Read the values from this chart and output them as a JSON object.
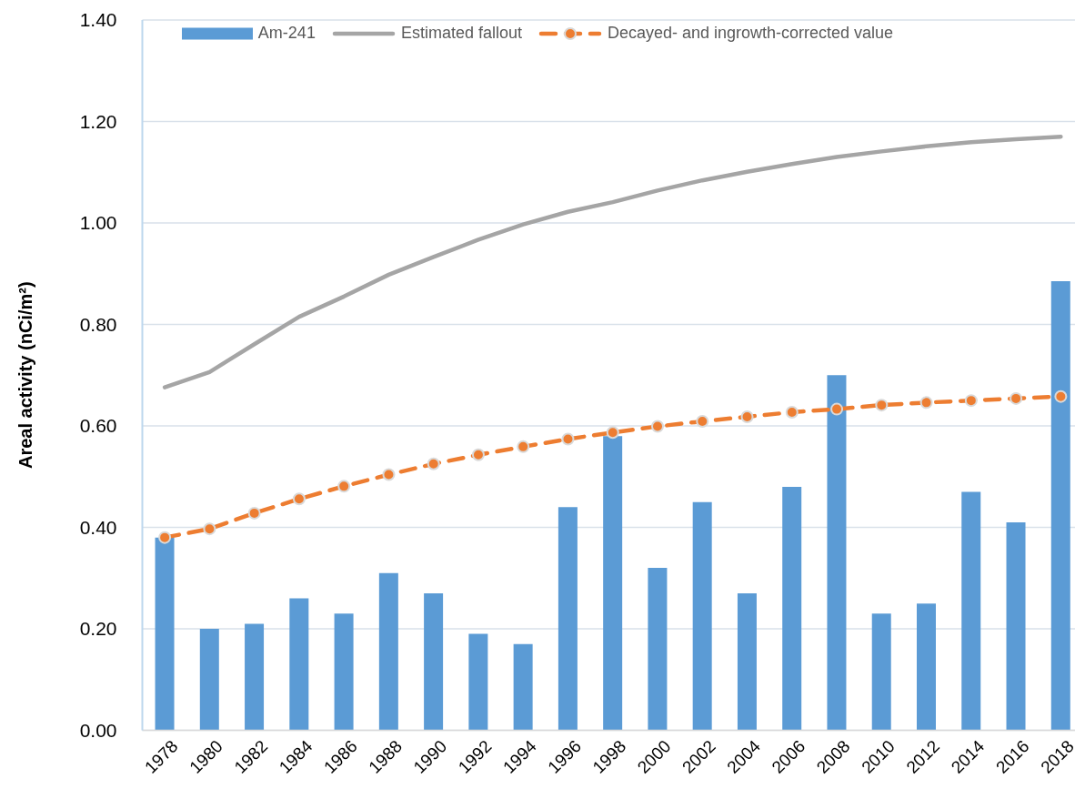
{
  "chart_data": {
    "type": "bar",
    "ylabel": "Areal activity (nCi/m²)",
    "categories": [
      "1978",
      "1980",
      "1982",
      "1984",
      "1986",
      "1988",
      "1990",
      "1992",
      "1994",
      "1996",
      "1998",
      "2000",
      "2002",
      "2004",
      "2006",
      "2008",
      "2010",
      "2012",
      "2014",
      "2016",
      "2018"
    ],
    "series": [
      {
        "name": "Am-241",
        "color": "#5b9bd5",
        "values": [
          0.38,
          0.2,
          0.21,
          0.26,
          0.23,
          0.31,
          0.27,
          0.19,
          0.17,
          0.44,
          0.58,
          0.32,
          0.45,
          0.27,
          0.48,
          0.7,
          0.23,
          0.25,
          0.47,
          0.41,
          0.885
        ]
      },
      {
        "type": "line",
        "name": "Estimated fallout",
        "color": "#a5a5a5",
        "marker": "none",
        "line_style": "solid",
        "values": [
          0.676,
          0.706,
          0.761,
          0.815,
          0.855,
          0.898,
          0.933,
          0.967,
          0.997,
          1.022,
          1.041,
          1.064,
          1.084,
          1.101,
          1.116,
          1.13,
          1.141,
          1.151,
          1.159,
          1.165,
          1.17
        ]
      },
      {
        "type": "line",
        "name": "Decayed- and ingrowth-corrected value",
        "color": "#ed7d31",
        "marker": "circle",
        "line_style": "dashed",
        "values": [
          0.38,
          0.397,
          0.428,
          0.456,
          0.481,
          0.504,
          0.525,
          0.543,
          0.559,
          0.574,
          0.587,
          0.599,
          0.609,
          0.618,
          0.627,
          0.633,
          0.641,
          0.646,
          0.65,
          0.654,
          0.658
        ]
      }
    ],
    "ylim": [
      0,
      1.4
    ],
    "yticks": [
      {
        "value": 0,
        "label": "0.00"
      },
      {
        "value": 0.2,
        "label": "0.20"
      },
      {
        "value": 0.4,
        "label": "0.40"
      },
      {
        "value": 0.6,
        "label": "0.60"
      },
      {
        "value": 0.8,
        "label": "0.80"
      },
      {
        "value": 1,
        "label": "1.00"
      },
      {
        "value": 1.2,
        "label": "1.20"
      },
      {
        "value": 1.4,
        "label": "1.40"
      }
    ],
    "grid": "y",
    "legend": "top"
  }
}
